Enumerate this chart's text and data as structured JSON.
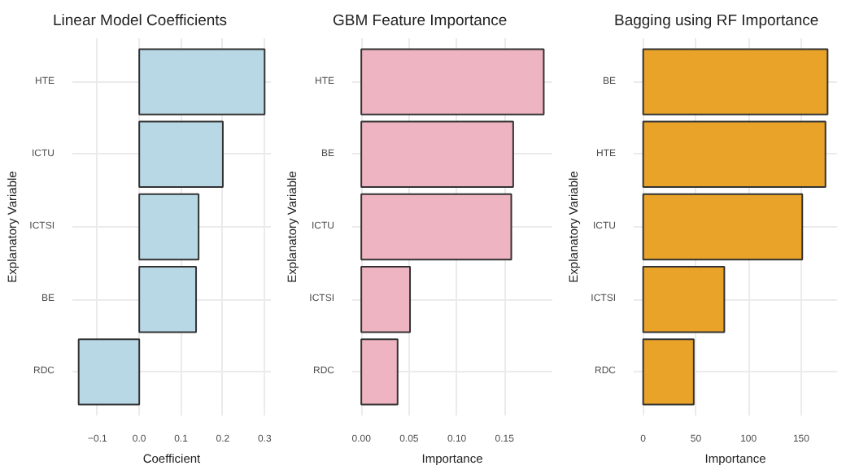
{
  "chart_data": [
    {
      "type": "bar",
      "orientation": "horizontal",
      "title": "Linear Model Coefficients",
      "xlabel": "Coefficient",
      "ylabel": "Explanatory Variable",
      "categories": [
        "HTE",
        "ICTU",
        "ICTSI",
        "BE",
        "RDC"
      ],
      "values": [
        0.3,
        0.2,
        0.142,
        0.136,
        -0.145
      ],
      "color": "#b9d8e6",
      "xlim": [
        -0.16,
        0.315
      ],
      "xticks": [
        {
          "value": -0.1,
          "label": "−0.1"
        },
        {
          "value": 0,
          "label": "0.0"
        },
        0.1,
        0.2,
        0.3
      ],
      "grid": true
    },
    {
      "type": "bar",
      "orientation": "horizontal",
      "title": "GBM Feature Importance",
      "xlabel": "Importance",
      "ylabel": "Explanatory Variable",
      "categories": [
        "HTE",
        "BE",
        "ICTU",
        "ICTSI",
        "RDC"
      ],
      "values": [
        0.191,
        0.159,
        0.157,
        0.051,
        0.038
      ],
      "color": "#efb4c1",
      "xlim": [
        -0.0095,
        0.2
      ],
      "xticks": [
        {
          "value": 0,
          "label": "0.00"
        },
        0.05,
        {
          "value": 0.1,
          "label": "0.10"
        },
        0.15
      ],
      "grid": true
    },
    {
      "type": "bar",
      "orientation": "horizontal",
      "title": "Bagging using RF Importance",
      "xlabel": "Importance",
      "ylabel": "Explanatory Variable",
      "categories": [
        "BE",
        "HTE",
        "ICTU",
        "ICTSI",
        "RDC"
      ],
      "values": [
        175,
        173,
        151,
        77,
        48
      ],
      "color": "#e8a328",
      "xlim": [
        -9,
        184
      ],
      "xticks": [
        0,
        50,
        100,
        150
      ],
      "grid": true
    }
  ]
}
